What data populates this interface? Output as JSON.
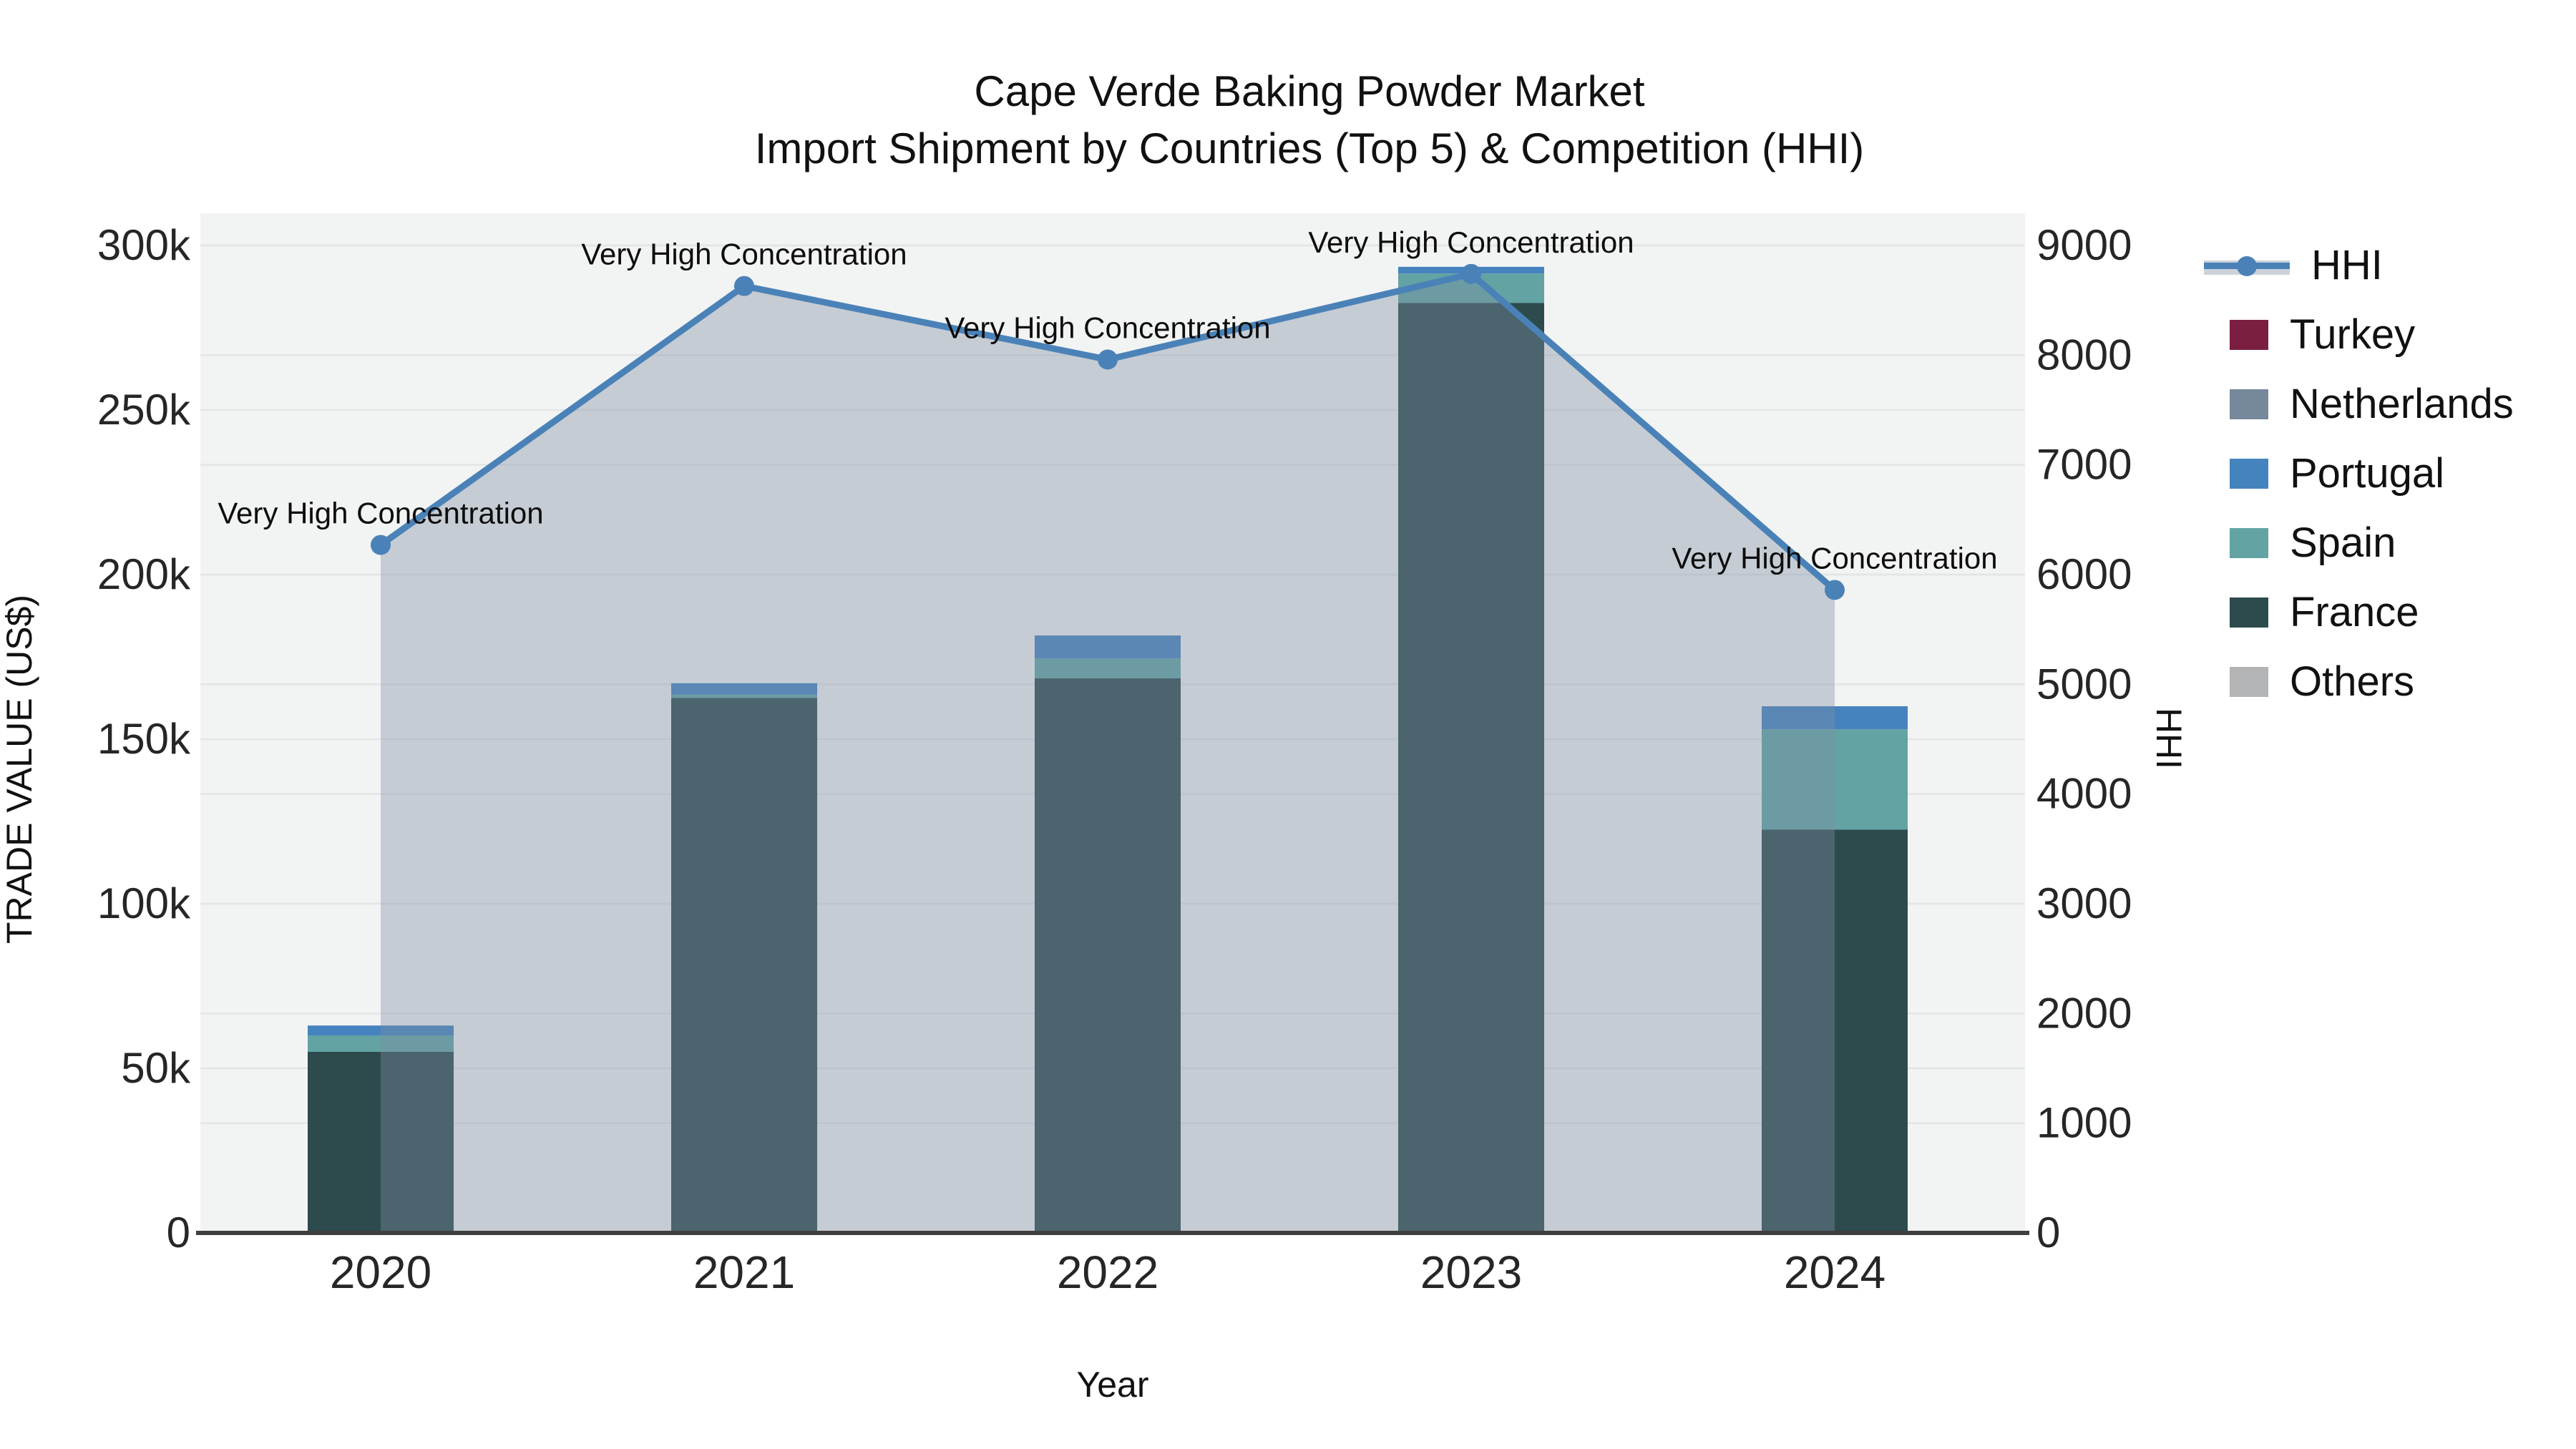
{
  "title": {
    "line1": "Cape Verde Baking Powder Market",
    "line2": "Import Shipment by Countries (Top 5) & Competition (HHI)"
  },
  "chart_data": {
    "type": "bar+line",
    "categories": [
      "2020",
      "2021",
      "2022",
      "2023",
      "2024"
    ],
    "bar_stack_order_note": "bottom to top",
    "bar_series": [
      {
        "name": "Others",
        "color": "#b3b4b5",
        "values": [
          0,
          0,
          0,
          0,
          0
        ]
      },
      {
        "name": "France",
        "color": "#2d4b4c",
        "values": [
          55000,
          162500,
          168500,
          282500,
          122500
        ]
      },
      {
        "name": "Spain",
        "color": "#63a3a3",
        "values": [
          5000,
          1000,
          6000,
          9000,
          30500
        ]
      },
      {
        "name": "Portugal",
        "color": "#4583bf",
        "values": [
          3000,
          3500,
          7000,
          2000,
          7000
        ]
      },
      {
        "name": "Netherlands",
        "color": "#76889b",
        "values": [
          0,
          0,
          0,
          0,
          0
        ]
      },
      {
        "name": "Turkey",
        "color": "#7a1f41",
        "values": [
          0,
          0,
          0,
          0,
          0
        ]
      }
    ],
    "bar_totals": [
      63000,
      167000,
      181500,
      293500,
      160000
    ],
    "line_series": {
      "name": "HHI",
      "color": "#4a82b8",
      "area_fill": "rgba(126,141,163,0.38)",
      "values": [
        6270,
        8630,
        7960,
        8740,
        5860
      ]
    },
    "annotations": [
      "Very High Concentration",
      "Very High Concentration",
      "Very High Concentration",
      "Very High Concentration",
      "Very High Concentration"
    ],
    "axes": {
      "left": {
        "title": "TRADE VALUE (US$)",
        "tick_labels": [
          "0",
          "50k",
          "100k",
          "150k",
          "200k",
          "250k",
          "300k"
        ],
        "min": 0,
        "max": 300000
      },
      "right": {
        "title": "HHI",
        "tick_labels": [
          "0",
          "1000",
          "2000",
          "3000",
          "4000",
          "5000",
          "6000",
          "7000",
          "8000",
          "9000"
        ],
        "min": 0,
        "max": 9000
      },
      "x": {
        "title": "Year"
      }
    },
    "legend": [
      {
        "name": "HHI",
        "symbol": "line",
        "color": "#4a82b8",
        "band": "#ccd1da"
      },
      {
        "name": "Turkey",
        "symbol": "swatch",
        "color": "#7a1f41"
      },
      {
        "name": "Netherlands",
        "symbol": "swatch",
        "color": "#76889b"
      },
      {
        "name": "Portugal",
        "symbol": "swatch",
        "color": "#4583bf"
      },
      {
        "name": "Spain",
        "symbol": "swatch",
        "color": "#63a3a3"
      },
      {
        "name": "France",
        "symbol": "swatch",
        "color": "#2d4b4c"
      },
      {
        "name": "Others",
        "symbol": "swatch",
        "color": "#b3b4b5"
      }
    ],
    "style": {
      "plot_bg": "#f2f3f3",
      "grid_color": "#e3e5e7",
      "axis_line_color": "#3f3f3f",
      "tick_text_color": "#262626",
      "annotation_color": "#0d0d0d",
      "grid_on": true,
      "legend_position": "right"
    }
  }
}
